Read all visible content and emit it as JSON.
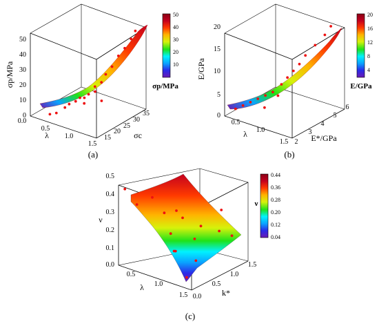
{
  "colors": {
    "colormap": [
      "#6a1bb4",
      "#2a2ae8",
      "#0aa3ff",
      "#00f2ff",
      "#1fe21a",
      "#d6f20b",
      "#ffb400",
      "#ff3a00",
      "#c4001e",
      "#8a0016"
    ],
    "points": "#ee1111",
    "axes": "#000000"
  },
  "chart_data": [
    {
      "panel_label": "(a)",
      "type": "scatter-surface-3d",
      "axes": {
        "x": {
          "label": "λ",
          "ticks": [
            "0.0",
            "0.5",
            "1.0",
            "1.5"
          ],
          "range": [
            0,
            1.5
          ]
        },
        "y": {
          "label": "σc",
          "ticks": [
            "15",
            "20",
            "25",
            "30",
            "35"
          ],
          "range": [
            13,
            37
          ]
        },
        "z": {
          "label": "σp/MPa",
          "ticks": [
            "0",
            "10",
            "20",
            "30",
            "40",
            "50"
          ],
          "range": [
            0,
            55
          ]
        }
      },
      "colorbar": {
        "label": "σp/MPa",
        "ticks": [
          "10",
          "20",
          "30",
          "40",
          "50"
        ],
        "range": [
          3,
          52
        ]
      },
      "points": [
        {
          "x": 0.35,
          "y": 15,
          "z": 3
        },
        {
          "x": 0.45,
          "y": 16,
          "z": 4
        },
        {
          "x": 0.55,
          "y": 18,
          "z": 7
        },
        {
          "x": 0.6,
          "y": 19,
          "z": 9
        },
        {
          "x": 0.7,
          "y": 20,
          "z": 11
        },
        {
          "x": 0.75,
          "y": 21,
          "z": 13
        },
        {
          "x": 0.85,
          "y": 21,
          "z": 14
        },
        {
          "x": 0.9,
          "y": 22,
          "z": 16
        },
        {
          "x": 1.0,
          "y": 23,
          "z": 18
        },
        {
          "x": 0.95,
          "y": 24,
          "z": 20
        },
        {
          "x": 1.05,
          "y": 25,
          "z": 23
        },
        {
          "x": 1.1,
          "y": 26,
          "z": 28
        },
        {
          "x": 1.15,
          "y": 28,
          "z": 32
        },
        {
          "x": 1.2,
          "y": 30,
          "z": 38
        },
        {
          "x": 1.25,
          "y": 32,
          "z": 42
        },
        {
          "x": 1.3,
          "y": 34,
          "z": 47
        },
        {
          "x": 1.35,
          "y": 35,
          "z": 52
        },
        {
          "x": 1.4,
          "y": 36,
          "z": 49
        },
        {
          "x": 1.1,
          "y": 24,
          "z": 12
        },
        {
          "x": 0.8,
          "y": 22,
          "z": 9
        }
      ]
    },
    {
      "panel_label": "(b)",
      "type": "scatter-surface-3d",
      "axes": {
        "x": {
          "label": "λ",
          "ticks": [
            "0.5",
            "1.0",
            "1.5"
          ],
          "range": [
            0.3,
            1.6
          ]
        },
        "y": {
          "label": "E*/GPa",
          "ticks": [
            "2",
            "3",
            "4",
            "5",
            "6"
          ],
          "range": [
            1.5,
            6
          ]
        },
        "z": {
          "label": "E/GPa",
          "ticks": [
            "0",
            "5",
            "10",
            "15",
            "20"
          ],
          "range": [
            0,
            22
          ]
        }
      },
      "colorbar": {
        "label": "E/GPa",
        "ticks": [
          "4",
          "8",
          "12",
          "16",
          "20"
        ],
        "range": [
          1,
          21
        ]
      },
      "points": [
        {
          "x": 0.4,
          "y": 2.0,
          "z": 1.5
        },
        {
          "x": 0.5,
          "y": 2.2,
          "z": 2.5
        },
        {
          "x": 0.6,
          "y": 2.4,
          "z": 3.5
        },
        {
          "x": 0.7,
          "y": 2.6,
          "z": 4.5
        },
        {
          "x": 0.8,
          "y": 2.8,
          "z": 5.5
        },
        {
          "x": 0.9,
          "y": 3.0,
          "z": 6.5
        },
        {
          "x": 1.0,
          "y": 3.3,
          "z": 8.5
        },
        {
          "x": 1.05,
          "y": 3.6,
          "z": 10
        },
        {
          "x": 1.1,
          "y": 3.9,
          "z": 11.5
        },
        {
          "x": 1.15,
          "y": 4.2,
          "z": 13
        },
        {
          "x": 1.2,
          "y": 4.5,
          "z": 15
        },
        {
          "x": 1.3,
          "y": 4.9,
          "z": 17.5
        },
        {
          "x": 1.4,
          "y": 5.3,
          "z": 20
        },
        {
          "x": 1.45,
          "y": 5.6,
          "z": 22
        },
        {
          "x": 1.0,
          "y": 3.0,
          "z": 6
        },
        {
          "x": 0.85,
          "y": 2.5,
          "z": 3
        }
      ]
    },
    {
      "panel_label": "(c)",
      "type": "scatter-surface-3d",
      "axes": {
        "x": {
          "label": "λ",
          "ticks": [
            "0.5",
            "1.0",
            "1.5"
          ],
          "range": [
            0.3,
            1.6
          ]
        },
        "y": {
          "label": "k*",
          "ticks": [
            "0.0",
            "0.5",
            "1.0",
            "1.5"
          ],
          "range": [
            0,
            1.6
          ]
        },
        "z": {
          "label": "ν",
          "ticks": [
            "0.0",
            "0.1",
            "0.2",
            "0.3",
            "0.4",
            "0.5"
          ],
          "range": [
            0,
            0.5
          ]
        }
      },
      "colorbar": {
        "label": "ν",
        "ticks": [
          "0.04",
          "0.12",
          "0.20",
          "0.28",
          "0.36",
          "0.44"
        ],
        "range": [
          0.03,
          0.45
        ]
      },
      "points": [
        {
          "x": 0.35,
          "y": 0.1,
          "z": 0.47
        },
        {
          "x": 0.5,
          "y": 0.2,
          "z": 0.38
        },
        {
          "x": 0.65,
          "y": 0.4,
          "z": 0.42
        },
        {
          "x": 0.8,
          "y": 0.5,
          "z": 0.33
        },
        {
          "x": 1.0,
          "y": 0.7,
          "z": 0.3
        },
        {
          "x": 1.2,
          "y": 0.9,
          "z": 0.25
        },
        {
          "x": 1.4,
          "y": 1.1,
          "z": 0.22
        },
        {
          "x": 1.5,
          "y": 1.3,
          "z": 0.18
        },
        {
          "x": 0.6,
          "y": 1.0,
          "z": 0.12
        },
        {
          "x": 0.9,
          "y": 1.2,
          "z": 0.1
        },
        {
          "x": 1.1,
          "y": 0.3,
          "z": 0.15
        },
        {
          "x": 1.3,
          "y": 0.6,
          "z": 0.08
        },
        {
          "x": 1.45,
          "y": 0.1,
          "z": 0.05
        },
        {
          "x": 0.45,
          "y": 1.4,
          "z": 0.2
        },
        {
          "x": 0.75,
          "y": 0.9,
          "z": 0.04
        },
        {
          "x": 1.25,
          "y": 1.4,
          "z": 0.3
        }
      ]
    }
  ]
}
